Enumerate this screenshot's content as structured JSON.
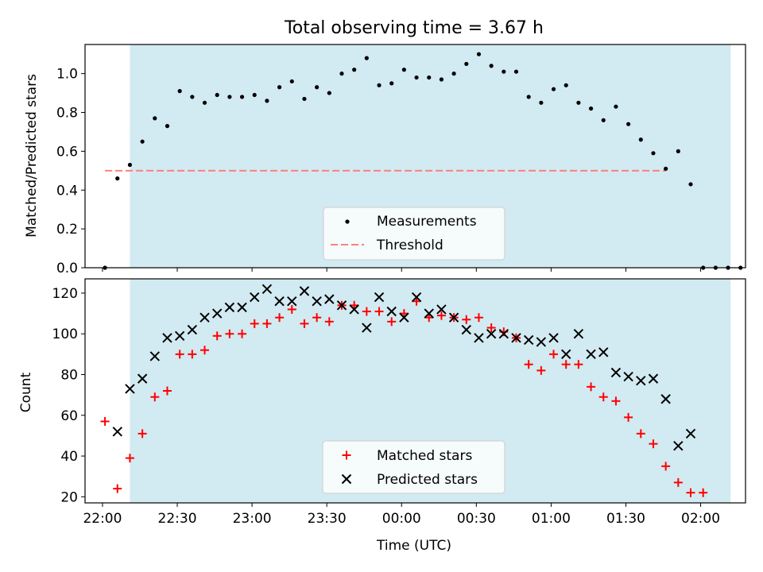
{
  "figure_title": "Total observing time = 3.67 h",
  "colors": {
    "observing_span": "#add8e6",
    "measurement": "#000000",
    "threshold": "#ff7f7f",
    "matched": "#ff0000",
    "predicted": "#000000"
  },
  "chart_data": [
    {
      "type": "scatter",
      "ylabel": "Matched/Predicted stars",
      "xlabel": "",
      "xlim": [
        "21:53",
        "02:18"
      ],
      "ylim": [
        0,
        1.15
      ],
      "yticks": [
        "0.0",
        "0.2",
        "0.4",
        "0.6",
        "0.8",
        "1.0"
      ],
      "observing_span": [
        "22:11",
        "02:12"
      ],
      "threshold": 0.5,
      "legend_position": "lower center",
      "legend": {
        "measurements": "Measurements",
        "threshold": "Threshold"
      },
      "series": [
        {
          "name": "Measurements",
          "x": [
            "22:01",
            "22:06",
            "22:11",
            "22:16",
            "22:21",
            "22:26",
            "22:31",
            "22:36",
            "22:41",
            "22:46",
            "22:51",
            "22:56",
            "23:01",
            "23:06",
            "23:11",
            "23:16",
            "23:21",
            "23:26",
            "23:31",
            "23:36",
            "23:41",
            "23:46",
            "23:51",
            "23:56",
            "00:01",
            "00:06",
            "00:11",
            "00:16",
            "00:21",
            "00:26",
            "00:31",
            "00:36",
            "00:41",
            "00:46",
            "00:51",
            "00:56",
            "01:01",
            "01:06",
            "01:11",
            "01:16",
            "01:21",
            "01:26",
            "01:31",
            "01:36",
            "01:41",
            "01:46",
            "01:51",
            "01:56",
            "02:01",
            "02:06",
            "02:11",
            "02:16"
          ],
          "y": [
            0.0,
            0.46,
            0.53,
            0.65,
            0.77,
            0.73,
            0.91,
            0.88,
            0.85,
            0.89,
            0.88,
            0.88,
            0.89,
            0.86,
            0.93,
            0.96,
            0.87,
            0.93,
            0.9,
            1.0,
            1.02,
            1.08,
            0.94,
            0.95,
            1.02,
            0.98,
            0.98,
            0.97,
            1.0,
            1.05,
            1.1,
            1.04,
            1.01,
            1.01,
            0.88,
            0.85,
            0.92,
            0.94,
            0.85,
            0.82,
            0.76,
            0.83,
            0.74,
            0.66,
            0.59,
            0.51,
            0.6,
            0.43,
            0.0,
            0.0,
            0.0,
            0.0
          ]
        }
      ]
    },
    {
      "type": "scatter",
      "ylabel": "Count",
      "xlabel": "Time (UTC)",
      "xlim": [
        "21:53",
        "02:18"
      ],
      "ylim": [
        17,
        127
      ],
      "yticks": [
        "20",
        "40",
        "60",
        "80",
        "100",
        "120"
      ],
      "xticks": [
        "22:00",
        "22:30",
        "23:00",
        "23:30",
        "00:00",
        "00:30",
        "01:00",
        "01:30",
        "02:00"
      ],
      "observing_span": [
        "22:11",
        "02:12"
      ],
      "legend_position": "lower center",
      "series": [
        {
          "name": "Matched stars",
          "x": [
            "22:01",
            "22:06",
            "22:11",
            "22:16",
            "22:21",
            "22:26",
            "22:31",
            "22:36",
            "22:41",
            "22:46",
            "22:51",
            "22:56",
            "23:01",
            "23:06",
            "23:11",
            "23:16",
            "23:21",
            "23:26",
            "23:31",
            "23:36",
            "23:41",
            "23:46",
            "23:51",
            "23:56",
            "00:01",
            "00:06",
            "00:11",
            "00:16",
            "00:21",
            "00:26",
            "00:31",
            "00:36",
            "00:41",
            "00:46",
            "00:51",
            "00:56",
            "01:01",
            "01:06",
            "01:11",
            "01:16",
            "01:21",
            "01:26",
            "01:31",
            "01:36",
            "01:41",
            "01:46",
            "01:51",
            "01:56",
            "02:01"
          ],
          "y": [
            57,
            24,
            39,
            51,
            69,
            72,
            90,
            90,
            92,
            99,
            100,
            100,
            105,
            105,
            108,
            112,
            105,
            108,
            106,
            114,
            114,
            111,
            111,
            106,
            110,
            116,
            108,
            109,
            108,
            107,
            108,
            103,
            101,
            98,
            85,
            82,
            90,
            85,
            85,
            74,
            69,
            67,
            59,
            51,
            46,
            35,
            27,
            22,
            22
          ]
        },
        {
          "name": "Predicted stars",
          "x": [
            "22:06",
            "22:11",
            "22:16",
            "22:21",
            "22:26",
            "22:31",
            "22:36",
            "22:41",
            "22:46",
            "22:51",
            "22:56",
            "23:01",
            "23:06",
            "23:11",
            "23:16",
            "23:21",
            "23:26",
            "23:31",
            "23:36",
            "23:41",
            "23:46",
            "23:51",
            "23:56",
            "00:01",
            "00:06",
            "00:11",
            "00:16",
            "00:21",
            "00:26",
            "00:31",
            "00:36",
            "00:41",
            "00:46",
            "00:51",
            "00:56",
            "01:01",
            "01:06",
            "01:11",
            "01:16",
            "01:21",
            "01:26",
            "01:31",
            "01:36",
            "01:41",
            "01:46",
            "01:51",
            "01:56"
          ],
          "y": [
            52,
            73,
            78,
            89,
            98,
            99,
            102,
            108,
            110,
            113,
            113,
            118,
            122,
            116,
            116,
            121,
            116,
            117,
            114,
            112,
            103,
            118,
            111,
            108,
            118,
            110,
            112,
            108,
            102,
            98,
            100,
            100,
            98,
            97,
            96,
            98,
            90,
            100,
            90,
            91,
            81,
            79,
            77,
            78,
            68,
            45,
            51
          ]
        }
      ]
    }
  ]
}
